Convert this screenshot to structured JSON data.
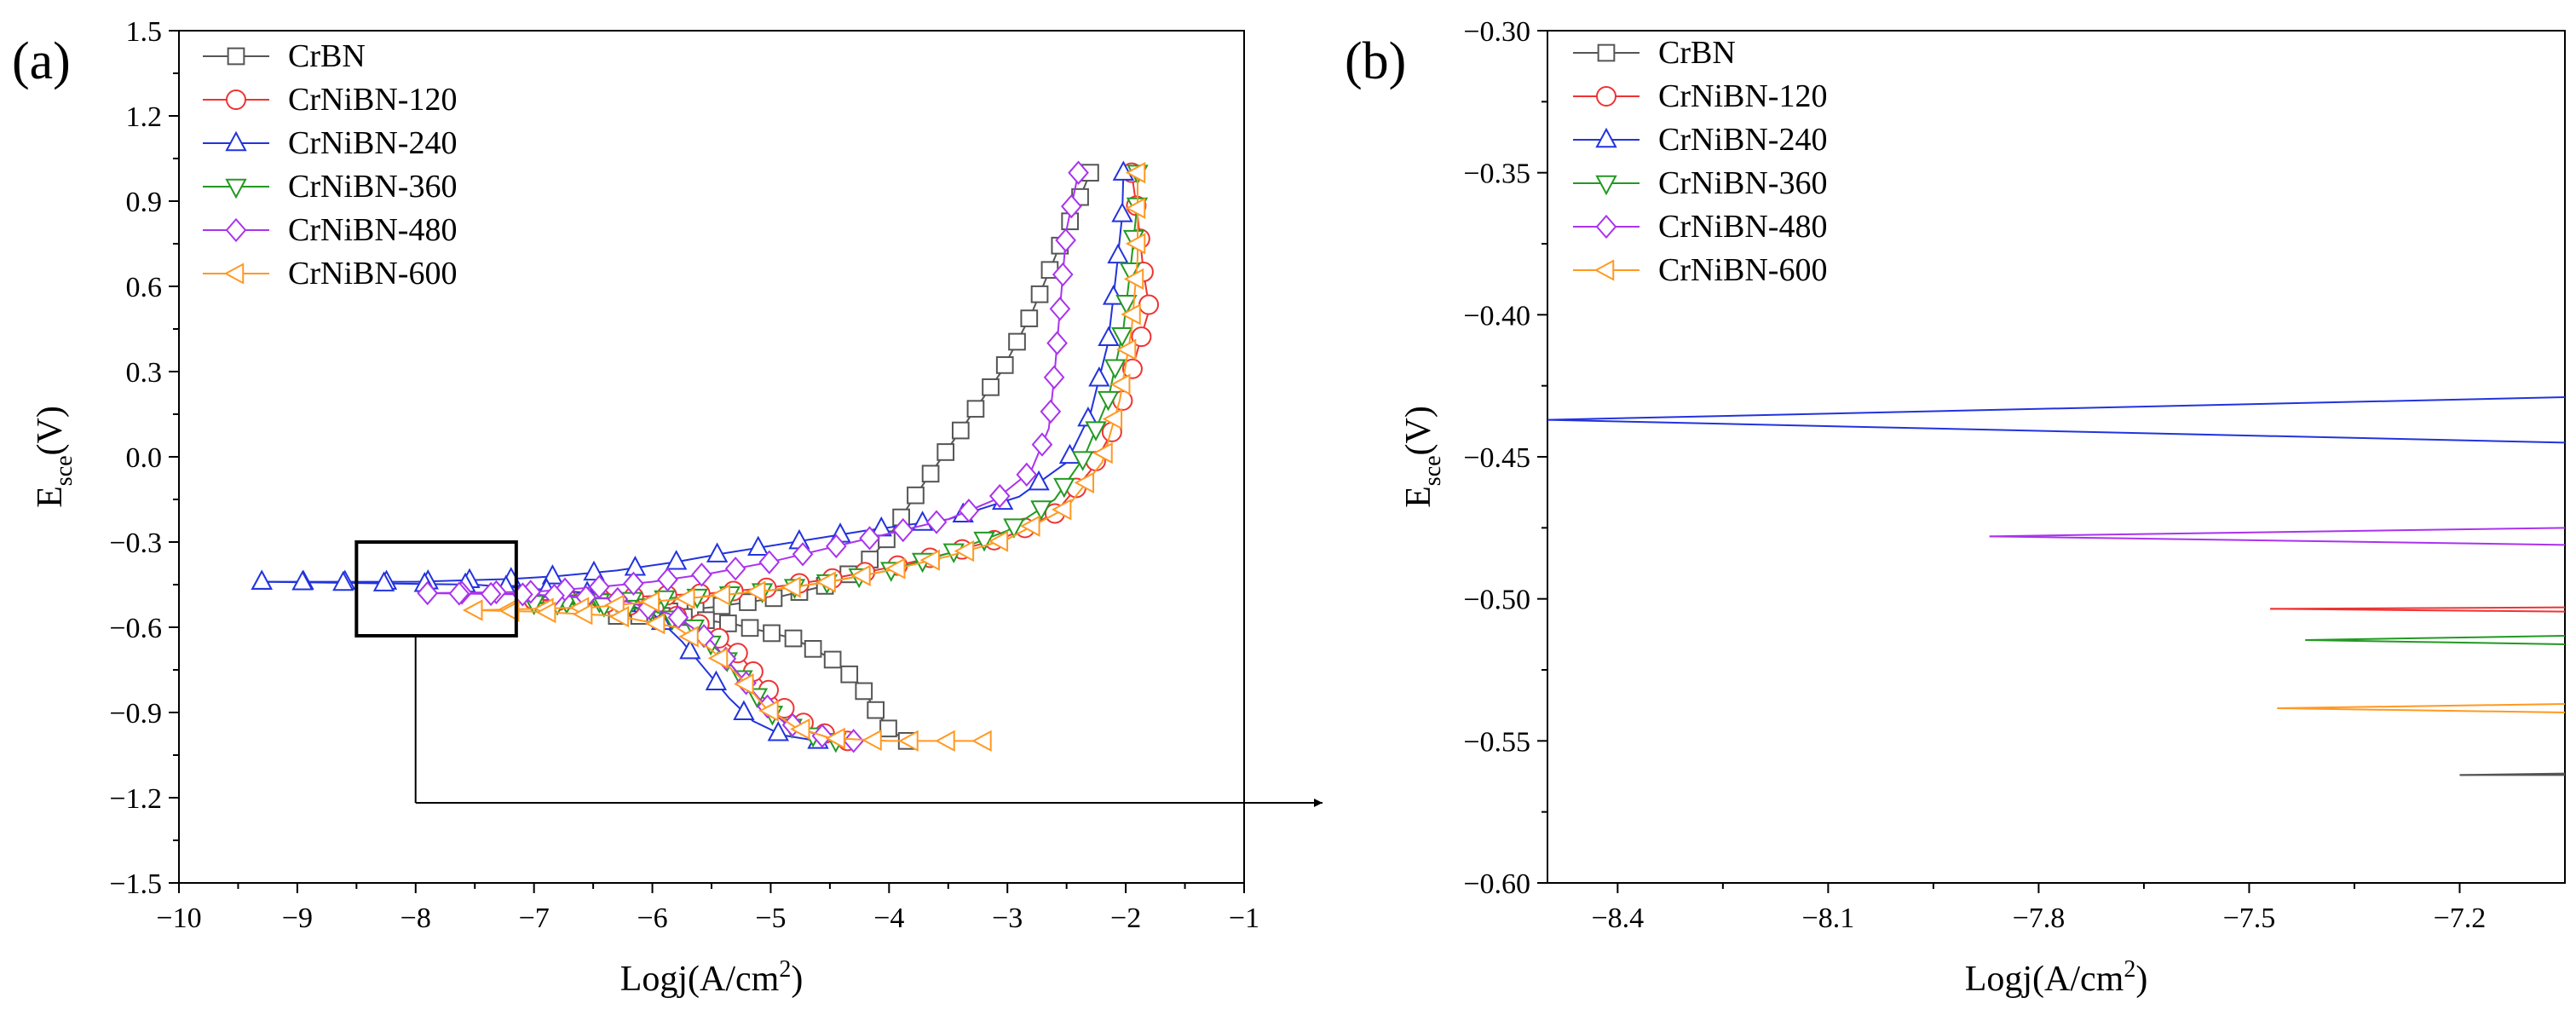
{
  "chart_data": [
    {
      "type": "line",
      "panel_label": "(a)",
      "xlabel": "Logj(A/cm",
      "xlabel_sup": "2",
      "xlabel_end": ")",
      "ylabel_main": "E",
      "ylabel_sub": "sce",
      "ylabel_end": "(V)",
      "xlim": [
        -10,
        -1
      ],
      "ylim": [
        -1.5,
        1.5
      ],
      "xticks": [
        -10,
        -9,
        -8,
        -7,
        -6,
        -5,
        -4,
        -3,
        -2,
        -1
      ],
      "xtick_labels": [
        "−10",
        "−9",
        "−8",
        "−7",
        "−6",
        "−5",
        "−4",
        "−3",
        "−2",
        "−1"
      ],
      "yticks": [
        -1.5,
        -1.2,
        -0.9,
        -0.6,
        -0.3,
        0.0,
        0.3,
        0.6,
        0.9,
        1.2,
        1.5
      ],
      "ytick_labels": [
        "−1.5",
        "−1.2",
        "−0.9",
        "−0.6",
        "−0.3",
        "0.0",
        "0.3",
        "0.6",
        "0.9",
        "1.2",
        "1.5"
      ],
      "legend_position": "top-left",
      "inset_box": {
        "x": [
          -8.5,
          -7.15
        ],
        "y": [
          -0.63,
          -0.3
        ]
      },
      "series": [
        {
          "name": "CrBN",
          "color": "#555555",
          "marker": "square",
          "anodic": [
            [
              -6.3,
              -0.56
            ],
            [
              -6.0,
              -0.55
            ],
            [
              -5.5,
              -0.53
            ],
            [
              -5.0,
              -0.5
            ],
            [
              -4.5,
              -0.45
            ],
            [
              -4.2,
              -0.38
            ],
            [
              -4.0,
              -0.28
            ],
            [
              -3.8,
              -0.15
            ],
            [
              -3.55,
              0.0
            ],
            [
              -3.3,
              0.15
            ],
            [
              -3.05,
              0.3
            ],
            [
              -2.8,
              0.5
            ],
            [
              -2.6,
              0.7
            ],
            [
              -2.45,
              0.85
            ],
            [
              -2.3,
              1.0
            ]
          ],
          "cathodic": [
            [
              -6.3,
              -0.56
            ],
            [
              -5.8,
              -0.56
            ],
            [
              -5.3,
              -0.59
            ],
            [
              -4.8,
              -0.64
            ],
            [
              -4.45,
              -0.72
            ],
            [
              -4.25,
              -0.8
            ],
            [
              -4.1,
              -0.9
            ],
            [
              -4.0,
              -0.96
            ],
            [
              -3.85,
              -1.0
            ]
          ]
        },
        {
          "name": "CrNiBN-120",
          "color": "#ee3333",
          "marker": "circle",
          "anodic": [
            [
              -7.0,
              -0.505
            ],
            [
              -6.5,
              -0.5
            ],
            [
              -6.0,
              -0.49
            ],
            [
              -5.5,
              -0.48
            ],
            [
              -5.0,
              -0.46
            ],
            [
              -4.5,
              -0.43
            ],
            [
              -4.0,
              -0.39
            ],
            [
              -3.5,
              -0.34
            ],
            [
              -3.0,
              -0.28
            ],
            [
              -2.6,
              -0.2
            ],
            [
              -2.3,
              -0.05
            ],
            [
              -2.1,
              0.1
            ],
            [
              -1.95,
              0.3
            ],
            [
              -1.85,
              0.45
            ],
            [
              -1.8,
              0.52
            ],
            [
              -1.85,
              0.65
            ],
            [
              -1.9,
              0.85
            ],
            [
              -1.95,
              1.0
            ]
          ],
          "cathodic": [
            [
              -7.0,
              -0.505
            ],
            [
              -6.5,
              -0.51
            ],
            [
              -6.0,
              -0.53
            ],
            [
              -5.6,
              -0.59
            ],
            [
              -5.3,
              -0.68
            ],
            [
              -5.1,
              -0.78
            ],
            [
              -4.9,
              -0.88
            ],
            [
              -4.65,
              -0.96
            ],
            [
              -4.35,
              -1.0
            ]
          ]
        },
        {
          "name": "CrNiBN-240",
          "color": "#2233dd",
          "marker": "triangle-up",
          "anodic": [
            [
              -9.3,
              -0.44
            ],
            [
              -8.0,
              -0.44
            ],
            [
              -7.2,
              -0.43
            ],
            [
              -6.8,
              -0.42
            ],
            [
              -6.3,
              -0.4
            ],
            [
              -5.8,
              -0.37
            ],
            [
              -5.4,
              -0.34
            ],
            [
              -4.8,
              -0.3
            ],
            [
              -4.2,
              -0.26
            ],
            [
              -3.5,
              -0.22
            ],
            [
              -2.9,
              -0.14
            ],
            [
              -2.5,
              -0.02
            ],
            [
              -2.3,
              0.15
            ],
            [
              -2.15,
              0.4
            ],
            [
              -2.08,
              0.65
            ],
            [
              -2.03,
              0.85
            ],
            [
              -2.02,
              1.0
            ]
          ],
          "cathodic": [
            [
              -9.3,
              -0.44
            ],
            [
              -7.5,
              -0.45
            ],
            [
              -6.5,
              -0.48
            ],
            [
              -6.0,
              -0.55
            ],
            [
              -5.75,
              -0.65
            ],
            [
              -5.55,
              -0.75
            ],
            [
              -5.35,
              -0.85
            ],
            [
              -5.15,
              -0.93
            ],
            [
              -4.9,
              -0.98
            ],
            [
              -4.6,
              -1.0
            ]
          ]
        },
        {
          "name": "CrNiBN-360",
          "color": "#229922",
          "marker": "triangle-down",
          "anodic": [
            [
              -7.0,
              -0.515
            ],
            [
              -6.5,
              -0.51
            ],
            [
              -6.0,
              -0.5
            ],
            [
              -5.5,
              -0.49
            ],
            [
              -5.0,
              -0.47
            ],
            [
              -4.5,
              -0.44
            ],
            [
              -4.0,
              -0.4
            ],
            [
              -3.5,
              -0.34
            ],
            [
              -3.0,
              -0.26
            ],
            [
              -2.6,
              -0.15
            ],
            [
              -2.35,
              0.0
            ],
            [
              -2.15,
              0.2
            ],
            [
              -2.02,
              0.45
            ],
            [
              -1.95,
              0.7
            ],
            [
              -1.9,
              0.9
            ],
            [
              -1.9,
              1.0
            ]
          ],
          "cathodic": [
            [
              -7.0,
              -0.515
            ],
            [
              -6.5,
              -0.52
            ],
            [
              -6.0,
              -0.54
            ],
            [
              -5.65,
              -0.6
            ],
            [
              -5.4,
              -0.7
            ],
            [
              -5.2,
              -0.8
            ],
            [
              -5.0,
              -0.9
            ],
            [
              -4.75,
              -0.97
            ],
            [
              -4.45,
              -1.0
            ]
          ]
        },
        {
          "name": "CrNiBN-480",
          "color": "#aa33ee",
          "marker": "diamond",
          "anodic": [
            [
              -7.9,
              -0.48
            ],
            [
              -7.0,
              -0.475
            ],
            [
              -6.5,
              -0.46
            ],
            [
              -6.0,
              -0.44
            ],
            [
              -5.5,
              -0.41
            ],
            [
              -5.0,
              -0.37
            ],
            [
              -4.5,
              -0.32
            ],
            [
              -4.0,
              -0.27
            ],
            [
              -3.5,
              -0.22
            ],
            [
              -3.1,
              -0.15
            ],
            [
              -2.8,
              -0.05
            ],
            [
              -2.65,
              0.1
            ],
            [
              -2.6,
              0.3
            ],
            [
              -2.55,
              0.55
            ],
            [
              -2.5,
              0.8
            ],
            [
              -2.4,
              1.0
            ]
          ],
          "cathodic": [
            [
              -7.9,
              -0.48
            ],
            [
              -7.0,
              -0.485
            ],
            [
              -6.3,
              -0.5
            ],
            [
              -5.8,
              -0.56
            ],
            [
              -5.5,
              -0.65
            ],
            [
              -5.3,
              -0.75
            ],
            [
              -5.1,
              -0.85
            ],
            [
              -4.9,
              -0.93
            ],
            [
              -4.6,
              -0.98
            ],
            [
              -4.3,
              -1.0
            ]
          ]
        },
        {
          "name": "CrNiBN-600",
          "color": "#ff9922",
          "marker": "triangle-left",
          "anodic": [
            [
              -7.5,
              -0.54
            ],
            [
              -7.0,
              -0.535
            ],
            [
              -6.5,
              -0.53
            ],
            [
              -6.0,
              -0.51
            ],
            [
              -5.5,
              -0.49
            ],
            [
              -5.0,
              -0.47
            ],
            [
              -4.5,
              -0.44
            ],
            [
              -4.0,
              -0.4
            ],
            [
              -3.5,
              -0.35
            ],
            [
              -3.0,
              -0.29
            ],
            [
              -2.5,
              -0.18
            ],
            [
              -2.2,
              -0.02
            ],
            [
              -2.05,
              0.2
            ],
            [
              -1.95,
              0.45
            ],
            [
              -1.9,
              0.7
            ],
            [
              -1.9,
              1.0
            ]
          ],
          "cathodic": [
            [
              -7.5,
              -0.54
            ],
            [
              -7.0,
              -0.545
            ],
            [
              -6.3,
              -0.56
            ],
            [
              -5.8,
              -0.6
            ],
            [
              -5.5,
              -0.68
            ],
            [
              -5.25,
              -0.78
            ],
            [
              -5.05,
              -0.88
            ],
            [
              -4.8,
              -0.95
            ],
            [
              -4.5,
              -0.99
            ],
            [
              -4.0,
              -1.0
            ],
            [
              -3.5,
              -1.0
            ],
            [
              -3.2,
              -1.0
            ]
          ]
        }
      ]
    },
    {
      "type": "line",
      "panel_label": "(b)",
      "xlabel": "Logj(A/cm",
      "xlabel_sup": "2",
      "xlabel_end": ")",
      "ylabel_main": "E",
      "ylabel_sub": "sce",
      "ylabel_end": "(V)",
      "xlim": [
        -8.5,
        -7.05
      ],
      "ylim": [
        -0.6,
        -0.3
      ],
      "xticks": [
        -8.4,
        -8.1,
        -7.8,
        -7.5,
        -7.2
      ],
      "xtick_labels": [
        "−8.4",
        "−8.1",
        "−7.8",
        "−7.5",
        "−7.2"
      ],
      "yticks": [
        -0.6,
        -0.55,
        -0.5,
        -0.45,
        -0.4,
        -0.35,
        -0.3
      ],
      "ytick_labels": [
        "−0.60",
        "−0.55",
        "−0.50",
        "−0.45",
        "−0.40",
        "−0.35",
        "−0.30"
      ],
      "legend_position": "top-left",
      "series": [
        {
          "name": "CrBN",
          "color": "#555555",
          "marker": "square",
          "start_x": -7.2,
          "y_start": -0.562,
          "y_upper": -0.5615,
          "y_lower": -0.562
        },
        {
          "name": "CrNiBN-120",
          "color": "#ee3333",
          "marker": "circle",
          "start_x": -7.47,
          "y_start": -0.5035,
          "y_upper": -0.503,
          "y_lower": -0.5045
        },
        {
          "name": "CrNiBN-240",
          "color": "#2233dd",
          "marker": "triangle-up",
          "start_x": -8.5,
          "y_start": -0.437,
          "y_upper": -0.429,
          "y_lower": -0.445
        },
        {
          "name": "CrNiBN-360",
          "color": "#229922",
          "marker": "triangle-down",
          "start_x": -7.42,
          "y_start": -0.5145,
          "y_upper": -0.513,
          "y_lower": -0.516
        },
        {
          "name": "CrNiBN-480",
          "color": "#aa33ee",
          "marker": "diamond",
          "start_x": -7.87,
          "y_start": -0.478,
          "y_upper": -0.475,
          "y_lower": -0.481
        },
        {
          "name": "CrNiBN-600",
          "color": "#ff9922",
          "marker": "triangle-left",
          "start_x": -7.46,
          "y_start": -0.5385,
          "y_upper": -0.537,
          "y_lower": -0.54
        }
      ]
    }
  ]
}
